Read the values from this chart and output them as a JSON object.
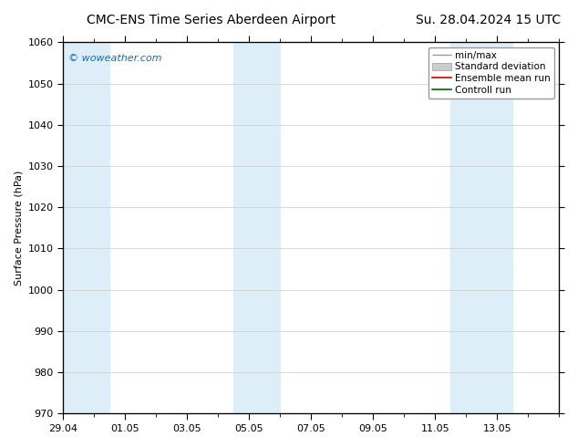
{
  "title_left": "CMC-ENS Time Series Aberdeen Airport",
  "title_right": "Su. 28.04.2024 15 UTC",
  "ylabel": "Surface Pressure (hPa)",
  "ylim": [
    970,
    1060
  ],
  "yticks": [
    970,
    980,
    990,
    1000,
    1010,
    1020,
    1030,
    1040,
    1050,
    1060
  ],
  "xlim_min": 0,
  "xlim_max": 16,
  "xtick_major_positions": [
    0,
    2,
    4,
    6,
    8,
    10,
    12,
    14
  ],
  "xtick_major_labels": [
    "29.04",
    "01.05",
    "03.05",
    "05.05",
    "07.05",
    "09.05",
    "11.05",
    "13.05"
  ],
  "shaded_bands": [
    {
      "x_start": 0,
      "x_end": 1.5,
      "color": "#ddeef8"
    },
    {
      "x_start": 5.5,
      "x_end": 7.0,
      "color": "#ddeef8"
    },
    {
      "x_start": 12.5,
      "x_end": 14.5,
      "color": "#ddeef8"
    }
  ],
  "watermark_text": "© woweather.com",
  "watermark_color": "#1a6bb5",
  "background_color": "#ffffff",
  "plot_bg_color": "#ffffff",
  "legend_entries": [
    {
      "label": "min/max",
      "color": "#aaaaaa",
      "style": "minmax"
    },
    {
      "label": "Standard deviation",
      "color": "#cccccc",
      "style": "bar"
    },
    {
      "label": "Ensemble mean run",
      "color": "#cc0000",
      "style": "line"
    },
    {
      "label": "Controll run",
      "color": "#006600",
      "style": "line"
    }
  ],
  "title_fontsize": 10,
  "tick_fontsize": 8,
  "ylabel_fontsize": 8,
  "legend_fontsize": 7.5
}
